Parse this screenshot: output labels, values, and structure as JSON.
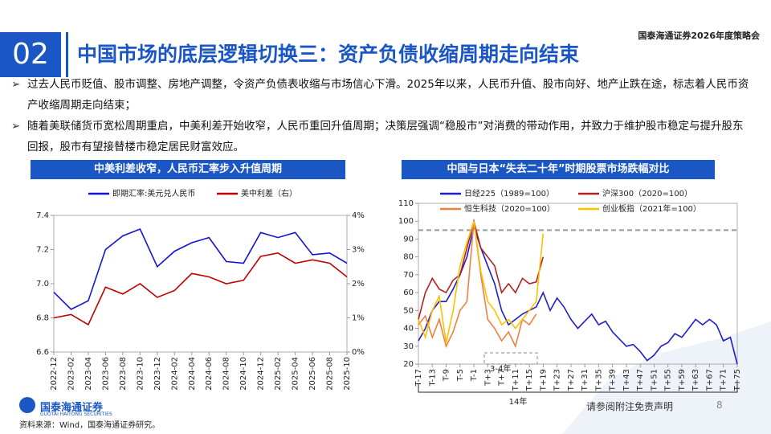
{
  "header": {
    "section": "02",
    "title": "中国市场的底层逻辑切换三：资产负债收缩周期走向结束",
    "event": "国泰海通证券2026年度策略会"
  },
  "bullets": [
    "过去人民币贬值、股市调整、房地产调整，令资产负债表收缩与市场信心下滑。2025年以来，人民币升值、股市向好、地产止跌在途，标志着人民币资产收缩周期走向结束；",
    "随着美联储货币宽松周期重启，中美利差开始收窄，人民币重回升值周期；决策层强调“稳股市”对消费的带动作用，并致力于维护股市稳定与提升股东回报，股市有望接替楼市稳定居民财富效应。"
  ],
  "chart_data": [
    {
      "type": "line",
      "title": "中美利差收窄，人民币汇率步入升值周期",
      "x": [
        "2022-12",
        "2023-02",
        "2023-04",
        "2023-06",
        "2023-08",
        "2023-10",
        "2023-12",
        "2024-02",
        "2024-04",
        "2024-06",
        "2024-08",
        "2024-10",
        "2024-12",
        "2025-02",
        "2025-04",
        "2025-06",
        "2025-08",
        "2025-10"
      ],
      "series": [
        {
          "name": "即期汇率:美元兑人民币",
          "color": "#1414d2",
          "values": [
            6.95,
            6.85,
            6.9,
            7.2,
            7.28,
            7.32,
            7.1,
            7.19,
            7.24,
            7.27,
            7.13,
            7.12,
            7.3,
            7.27,
            7.3,
            7.17,
            7.18,
            7.12
          ]
        },
        {
          "name": "美中利差（右）",
          "color": "#c00000",
          "axis": "y2",
          "values": [
            1.0,
            1.1,
            0.8,
            1.9,
            1.7,
            2.0,
            1.6,
            1.8,
            2.3,
            2.2,
            2.0,
            2.1,
            2.8,
            2.9,
            2.6,
            2.7,
            2.6,
            2.2
          ]
        }
      ],
      "ylim": [
        6.6,
        7.4
      ],
      "yticks": [
        6.6,
        6.8,
        {
          "value": 7,
          "label": "7.0"
        },
        7.2,
        7.4
      ],
      "y2lim": [
        0,
        4
      ],
      "y2ticks": [
        {
          "value": 0,
          "label": "0%"
        },
        {
          "value": 1,
          "label": "1%"
        },
        {
          "value": 2,
          "label": "2%"
        },
        {
          "value": 3,
          "label": "3%"
        },
        {
          "value": 4,
          "label": "4%"
        }
      ],
      "legend": "top"
    },
    {
      "type": "line",
      "title": "中国与日本“失去二十年”时期股票市场跌幅对比",
      "x": [
        -17,
        -15,
        -13,
        -11,
        -9,
        -7,
        -5,
        -3,
        -1,
        1,
        3,
        5,
        7,
        9,
        11,
        13,
        15,
        17,
        19,
        21,
        23,
        25,
        27,
        29,
        31,
        33,
        35,
        37,
        39,
        41,
        43,
        45,
        47,
        49,
        51,
        53,
        55,
        57,
        59,
        61,
        63,
        65,
        67,
        69,
        71,
        73,
        75
      ],
      "xlim": [
        -17,
        75
      ],
      "xticks": [
        {
          "value": -17,
          "label": "T-17"
        },
        {
          "value": -13,
          "label": "T-13"
        },
        {
          "value": -9,
          "label": "T-9"
        },
        {
          "value": -5,
          "label": "T-5"
        },
        {
          "value": -1,
          "label": "T-1"
        },
        {
          "value": 3,
          "label": "T+3"
        },
        {
          "value": 7,
          "label": "T+7"
        },
        {
          "value": 11,
          "label": "T+11"
        },
        {
          "value": 15,
          "label": "T+15"
        },
        {
          "value": 19,
          "label": "T+19"
        },
        {
          "value": 23,
          "label": "T+23"
        },
        {
          "value": 27,
          "label": "T+27"
        },
        {
          "value": 31,
          "label": "T+31"
        },
        {
          "value": 35,
          "label": "T+35"
        },
        {
          "value": 39,
          "label": "T+39"
        },
        {
          "value": 43,
          "label": "T+43"
        },
        {
          "value": 47,
          "label": "T+47"
        },
        {
          "value": 51,
          "label": "T+51"
        },
        {
          "value": 55,
          "label": "T+55"
        },
        {
          "value": 59,
          "label": "T+59"
        },
        {
          "value": 63,
          "label": "T+63"
        },
        {
          "value": 67,
          "label": "T+67"
        },
        {
          "value": 71,
          "label": "T+71"
        },
        {
          "value": 75,
          "label": "T+75"
        }
      ],
      "series": [
        {
          "name": "日经225（1989=100）",
          "color": "#1f1fc8",
          "values": [
            33,
            40,
            50,
            55,
            55,
            62,
            70,
            80,
            97,
            85,
            75,
            65,
            50,
            42,
            45,
            48,
            50,
            52,
            60,
            50,
            57,
            52,
            45,
            40,
            44,
            48,
            42,
            44,
            38,
            34,
            30,
            31,
            27,
            22,
            25,
            30,
            32,
            37,
            35,
            40,
            45,
            42,
            45,
            42,
            33,
            35,
            20
          ]
        },
        {
          "name": "沪深300（2020=100）",
          "color": "#b22222",
          "values": [
            45,
            60,
            68,
            62,
            60,
            67,
            70,
            85,
            100,
            85,
            80,
            75,
            60,
            65,
            60,
            68,
            65,
            66,
            80,
            null,
            null,
            null,
            null,
            null,
            null,
            null,
            null,
            null,
            null,
            null,
            null,
            null,
            null,
            null,
            null,
            null,
            null,
            null,
            null,
            null,
            null,
            null,
            null,
            null,
            null,
            null,
            null
          ]
        },
        {
          "name": "恒生科技（2020=100）",
          "color": "#f08040",
          "values": [
            42,
            47,
            35,
            45,
            30,
            38,
            50,
            55,
            100,
            70,
            45,
            40,
            33,
            38,
            30,
            45,
            42,
            48,
            null,
            null,
            null,
            null,
            null,
            null,
            null,
            null,
            null,
            null,
            null,
            null,
            null,
            null,
            null,
            null,
            null,
            null,
            null,
            null,
            null,
            null,
            null,
            null,
            null,
            null,
            null,
            null,
            null
          ]
        },
        {
          "name": "创业板指（2021年=100）",
          "color": "#ffc000",
          "values": [
            45,
            35,
            50,
            58,
            32,
            50,
            75,
            88,
            100,
            72,
            55,
            50,
            42,
            45,
            40,
            45,
            50,
            55,
            93,
            null,
            null,
            null,
            null,
            null,
            null,
            null,
            null,
            null,
            null,
            null,
            null,
            null,
            null,
            null,
            null,
            null,
            null,
            null,
            null,
            null,
            null,
            null,
            null,
            null,
            null,
            null,
            null
          ]
        }
      ],
      "ylim": [
        20,
        110
      ],
      "yticks": [
        20,
        30,
        40,
        50,
        60,
        70,
        80,
        90,
        100,
        110
      ],
      "hline": 95,
      "annotations": [
        "3-4年",
        "14年"
      ],
      "legend": "top-left"
    }
  ],
  "footer": {
    "logo_cn": "国泰海通证券",
    "logo_en": "GUOTAI HAITONG SECURITIES",
    "disclaimer": "请参阅附注免责声明",
    "page": 8,
    "source": "资料来源：Wind，国泰海通证券研究。"
  }
}
